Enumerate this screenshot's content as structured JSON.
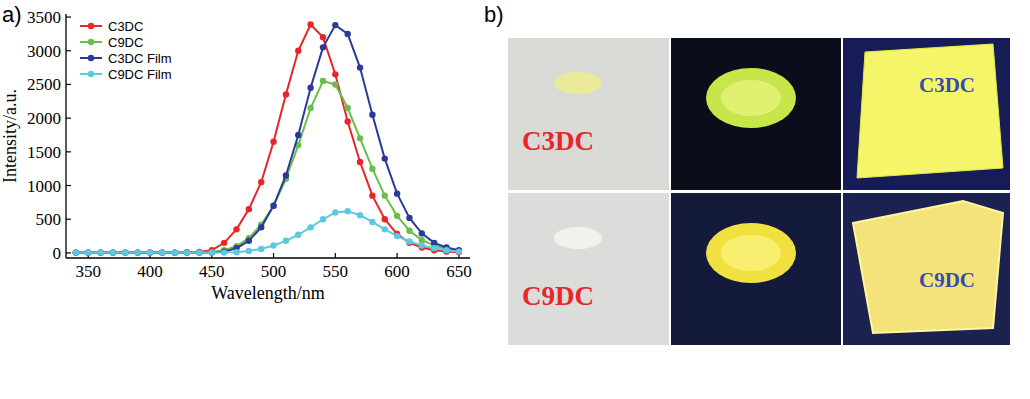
{
  "panel_labels": {
    "a": "a)",
    "b": "b)"
  },
  "chart_data": {
    "type": "line",
    "x_label": "Wavelength/nm",
    "y_label": "Intensity/a.u.",
    "x": [
      340,
      350,
      360,
      370,
      380,
      390,
      400,
      410,
      420,
      430,
      440,
      450,
      460,
      470,
      480,
      490,
      500,
      510,
      520,
      530,
      540,
      550,
      560,
      570,
      580,
      590,
      600,
      610,
      620,
      630,
      640,
      650
    ],
    "series": [
      {
        "name": "C3DC",
        "color": "#e8262a",
        "marker": "circle",
        "values": [
          5,
          5,
          5,
          5,
          5,
          5,
          5,
          5,
          5,
          10,
          15,
          40,
          150,
          350,
          650,
          1050,
          1650,
          2350,
          3000,
          3390,
          3200,
          2650,
          1950,
          1350,
          850,
          500,
          280,
          150,
          80,
          40,
          20,
          10
        ]
      },
      {
        "name": "C9DC",
        "color": "#6abf4b",
        "marker": "circle",
        "values": [
          5,
          5,
          5,
          5,
          5,
          5,
          5,
          5,
          5,
          5,
          5,
          10,
          40,
          100,
          220,
          420,
          700,
          1100,
          1600,
          2150,
          2550,
          2500,
          2150,
          1700,
          1250,
          850,
          550,
          330,
          190,
          110,
          60,
          30
        ]
      },
      {
        "name": "C3DC Film",
        "color": "#2b3a98",
        "marker": "circle",
        "values": [
          5,
          5,
          5,
          5,
          5,
          5,
          5,
          5,
          5,
          5,
          5,
          5,
          20,
          70,
          180,
          380,
          700,
          1150,
          1750,
          2450,
          3050,
          3380,
          3250,
          2750,
          2050,
          1400,
          880,
          520,
          290,
          150,
          80,
          40
        ]
      },
      {
        "name": "C9DC Film",
        "color": "#5ec8e2",
        "marker": "circle",
        "values": [
          5,
          5,
          5,
          5,
          5,
          5,
          5,
          5,
          5,
          5,
          5,
          5,
          5,
          10,
          30,
          60,
          110,
          180,
          270,
          380,
          500,
          600,
          620,
          560,
          460,
          350,
          250,
          170,
          110,
          70,
          40,
          20
        ]
      }
    ],
    "xlim": [
      332,
      659
    ],
    "ylim": [
      -75,
      3545
    ],
    "xticks": [
      350,
      400,
      450,
      500,
      550,
      600,
      650
    ],
    "yticks": [
      0,
      500,
      1000,
      1500,
      2000,
      2500,
      3000,
      3500
    ],
    "legend": "upper-left",
    "grid": false
  },
  "photos": {
    "rows": [
      {
        "powder_label": "C3DC",
        "film_label": "C3DC"
      },
      {
        "powder_label": "C9DC",
        "film_label": "C9DC"
      }
    ]
  }
}
